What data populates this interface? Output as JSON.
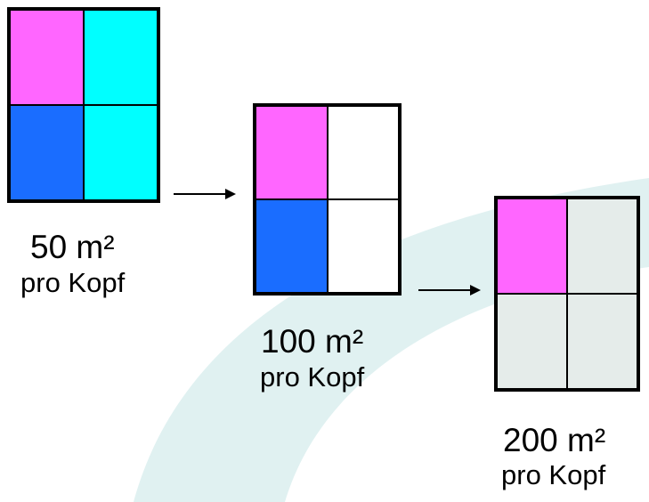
{
  "colors": {
    "magenta": "#ff66ff",
    "blue": "#1a6dff",
    "cyan": "#00ffff",
    "white": "#ffffff",
    "light_gray": "#e5ecea",
    "watermark_teal": "#dbeeee"
  },
  "diagrams": [
    {
      "area_label": "50 m²",
      "unit_label": "pro Kopf",
      "cells": [
        "magenta",
        "cyan",
        "blue",
        "cyan"
      ]
    },
    {
      "area_label": "100 m²",
      "unit_label": "pro Kopf",
      "cells": [
        "magenta",
        "white",
        "blue",
        "white"
      ]
    },
    {
      "area_label": "200 m²",
      "unit_label": "pro Kopf",
      "cells": [
        "magenta",
        "light_gray",
        "light_gray",
        "light_gray"
      ]
    }
  ]
}
